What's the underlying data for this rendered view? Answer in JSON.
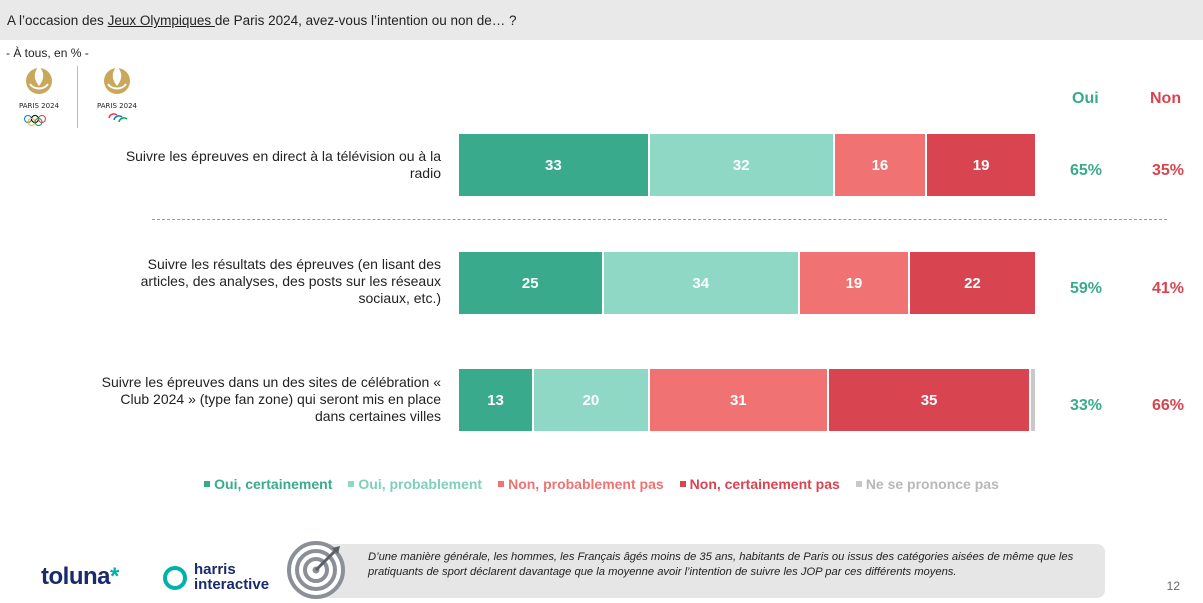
{
  "header": {
    "question_prefix": "A l’occasion des ",
    "question_link": "Jeux Olympiques ",
    "question_suffix": "de Paris 2024, avez-vous l’intention ou non de… ?"
  },
  "subtitle": "- À tous, en % -",
  "logos": [
    {
      "name": "paris-2024-olympic-logo",
      "text": "PARIS 2024"
    },
    {
      "name": "paris-2024-paralympic-logo",
      "text": "PARIS 2024"
    }
  ],
  "colors": {
    "oui_certainement": "#3aaa8c",
    "oui_probablement": "#8fd8c6",
    "non_probablement_pas": "#f07272",
    "non_certainement_pas": "#d84450",
    "ne_se_prononce_pas": "#c8c8c8",
    "oui_header": "#3aaa8c",
    "non_header": "#d84450"
  },
  "columns": {
    "oui": "Oui",
    "non": "Non"
  },
  "chart_data": {
    "type": "bar",
    "orientation": "horizontal-stacked",
    "unit": "%",
    "categories": [
      "Suivre les épreuves en direct à la télévision ou à la radio",
      "Suivre les résultats des épreuves (en lisant des articles, des analyses, des posts sur les réseaux sociaux, etc.)",
      "Suivre les épreuves dans un des sites de célébration « Club 2024 » (type fan zone) qui seront mis en place dans certaines villes"
    ],
    "series": [
      {
        "name": "Oui, certainement",
        "values": [
          33,
          25,
          13
        ]
      },
      {
        "name": "Oui, probablement",
        "values": [
          32,
          34,
          20
        ]
      },
      {
        "name": "Non, probablement pas",
        "values": [
          16,
          19,
          31
        ]
      },
      {
        "name": "Non, certainement pas",
        "values": [
          19,
          22,
          35
        ]
      },
      {
        "name": "Ne se prononce pas",
        "values": [
          0,
          0,
          1
        ]
      }
    ],
    "totals_oui": [
      "65%",
      "59%",
      "33%"
    ],
    "totals_non": [
      "35%",
      "41%",
      "66%"
    ],
    "legend_position": "bottom"
  },
  "footer": {
    "note": "D’une manière générale, les hommes, les Français âgés moins de 35 ans, habitants de Paris ou issus des catégories aisées de même que les pratiquants de sport déclarent davantage que la moyenne avoir l’intention de suivre les JOP par ces différents moyens.",
    "page_number": "12",
    "toluna": "toluna",
    "harris_line1": "harris",
    "harris_line2": "interactive"
  }
}
